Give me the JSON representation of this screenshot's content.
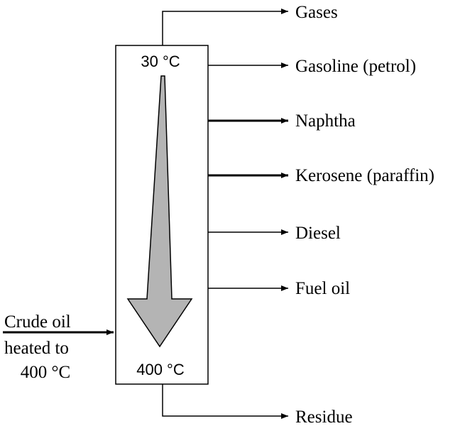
{
  "column": {
    "top_temperature": "30 °C",
    "bottom_temperature": "400 °C"
  },
  "input": {
    "line1": "Crude oil",
    "line2": "heated to",
    "line3": "400 °C"
  },
  "products": {
    "gases": "Gases",
    "gasoline": "Gasoline (petrol)",
    "naphtha": "Naphtha",
    "kerosene": "Kerosene (paraffin)",
    "diesel": "Diesel",
    "fuel_oil": "Fuel oil",
    "residue": "Residue"
  },
  "colors": {
    "arrow_fill": "#b4b4b4",
    "stroke": "#000000"
  }
}
